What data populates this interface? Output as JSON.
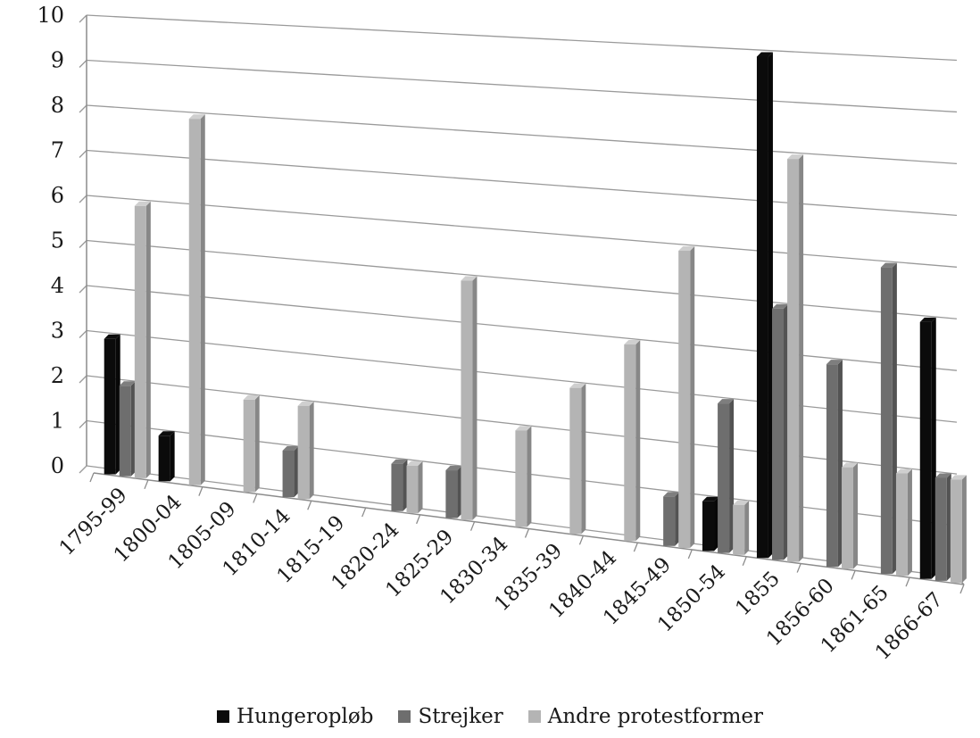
{
  "chart_data": {
    "type": "bar",
    "categories": [
      "1795-99",
      "1800-04",
      "1805-09",
      "1810-14",
      "1815-19",
      "1820-24",
      "1825-29",
      "1830-34",
      "1835-39",
      "1840-44",
      "1845-49",
      "1850-54",
      "1855",
      "1856-60",
      "1861-65",
      "1866-67"
    ],
    "series": [
      {
        "name": "Hungeropløb",
        "color": "#0b0b0b",
        "values": [
          3,
          1,
          0,
          0,
          0,
          0,
          0,
          0,
          0,
          0,
          0,
          1,
          10,
          0,
          0,
          5
        ]
      },
      {
        "name": "Strejker",
        "color": "#6e6e6e",
        "values": [
          2,
          0,
          0,
          1,
          0,
          1,
          1,
          0,
          0,
          0,
          1,
          3,
          5,
          4,
          6,
          2
        ]
      },
      {
        "name": "Andre protestformer",
        "color": "#b4b4b4",
        "values": [
          6,
          8,
          2,
          2,
          0,
          1,
          5,
          2,
          3,
          4,
          6,
          1,
          8,
          2,
          2,
          2
        ]
      }
    ],
    "ylim": [
      0,
      10
    ],
    "yticks": [
      "0",
      "1",
      "2",
      "3",
      "4",
      "5",
      "6",
      "7",
      "8",
      "9",
      "10"
    ],
    "grid": true,
    "legend_position": "bottom"
  }
}
